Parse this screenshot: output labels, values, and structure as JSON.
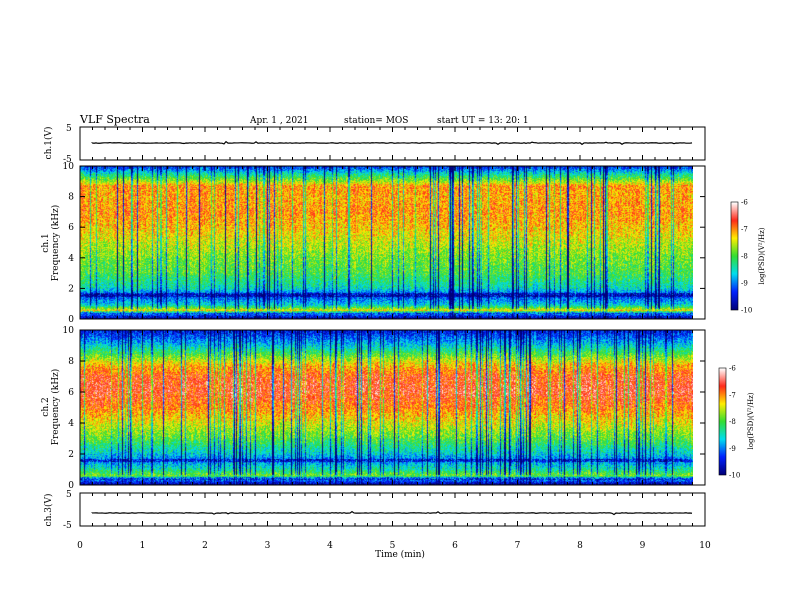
{
  "header": {
    "title": "VLF Spectra",
    "date": "Apr. 1 , 2021",
    "station": "station= MOS",
    "start": "start UT =  13: 20: 1"
  },
  "colors": {
    "spectrogram_ramp": [
      "#00007a",
      "#0022ff",
      "#00ddee",
      "#33dd33",
      "#ffee00",
      "#ff2a1a",
      "#ffffff"
    ],
    "trace": "#000000"
  },
  "chart_data": [
    {
      "type": "line",
      "panel": "waveform-ch1",
      "ylabel": "ch.1(V)",
      "ylim": [
        -5,
        5
      ],
      "yticks": [
        "5",
        "-5"
      ],
      "xlim": [
        0,
        10
      ],
      "x": [
        0,
        10
      ],
      "y": [
        0,
        0
      ]
    },
    {
      "type": "heatmap",
      "panel": "spectrogram-ch1",
      "ylabel_channel": "ch.1",
      "ylabel": "Frequency (kHz)",
      "ylim": [
        0,
        10
      ],
      "yticks": [
        "0",
        "2",
        "4",
        "6",
        "8",
        "10"
      ],
      "xlim": [
        0,
        9.85
      ],
      "colorbar": {
        "label": "log(PSD)(V²/Hz)",
        "range": [
          -10,
          -6
        ],
        "ticks": [
          "-6",
          "-7",
          "-8",
          "-9",
          "-10"
        ]
      },
      "z_profile_by_freq_kHz": [
        [
          0.0,
          -9.8
        ],
        [
          0.3,
          -9.0
        ],
        [
          0.5,
          -7.2
        ],
        [
          0.9,
          -8.6
        ],
        [
          1.5,
          -9.3
        ],
        [
          2.0,
          -8.5
        ],
        [
          3.0,
          -8.0
        ],
        [
          4.0,
          -7.8
        ],
        [
          5.0,
          -7.5
        ],
        [
          6.0,
          -7.2
        ],
        [
          7.0,
          -7.0
        ],
        [
          8.0,
          -7.1
        ],
        [
          8.7,
          -7.0
        ],
        [
          9.0,
          -7.6
        ],
        [
          9.5,
          -8.4
        ],
        [
          10.0,
          -9.4
        ]
      ]
    },
    {
      "type": "heatmap",
      "panel": "spectrogram-ch2",
      "ylabel_channel": "ch.2",
      "ylabel": "Frequency (kHz)",
      "ylim": [
        0,
        10
      ],
      "yticks": [
        "0",
        "2",
        "4",
        "6",
        "8",
        "10"
      ],
      "xlim": [
        0,
        9.85
      ],
      "colorbar": {
        "label": "log(PSD)(V²/Hz)",
        "range": [
          -10,
          -6
        ],
        "ticks": [
          "-6",
          "-7",
          "-8",
          "-9",
          "-10"
        ]
      },
      "z_profile_by_freq_kHz": [
        [
          0.0,
          -9.8
        ],
        [
          0.3,
          -9.0
        ],
        [
          0.6,
          -7.8
        ],
        [
          1.0,
          -8.4
        ],
        [
          1.6,
          -9.0
        ],
        [
          2.0,
          -8.6
        ],
        [
          3.0,
          -7.9
        ],
        [
          4.0,
          -7.4
        ],
        [
          5.0,
          -6.9
        ],
        [
          6.0,
          -6.6
        ],
        [
          7.0,
          -6.7
        ],
        [
          7.8,
          -7.2
        ],
        [
          8.5,
          -8.0
        ],
        [
          9.2,
          -8.8
        ],
        [
          10.0,
          -9.5
        ]
      ]
    },
    {
      "type": "line",
      "panel": "waveform-ch3",
      "ylabel": "ch.3(V)",
      "ylim": [
        -5,
        5
      ],
      "yticks": [
        "5",
        "-5"
      ],
      "xlim": [
        0,
        10
      ],
      "x": [
        0,
        10
      ],
      "y": [
        0,
        0
      ]
    }
  ],
  "xaxis": {
    "label": "Time (min)",
    "ticks": [
      "0",
      "1",
      "2",
      "3",
      "4",
      "5",
      "6",
      "7",
      "8",
      "9",
      "10"
    ]
  }
}
